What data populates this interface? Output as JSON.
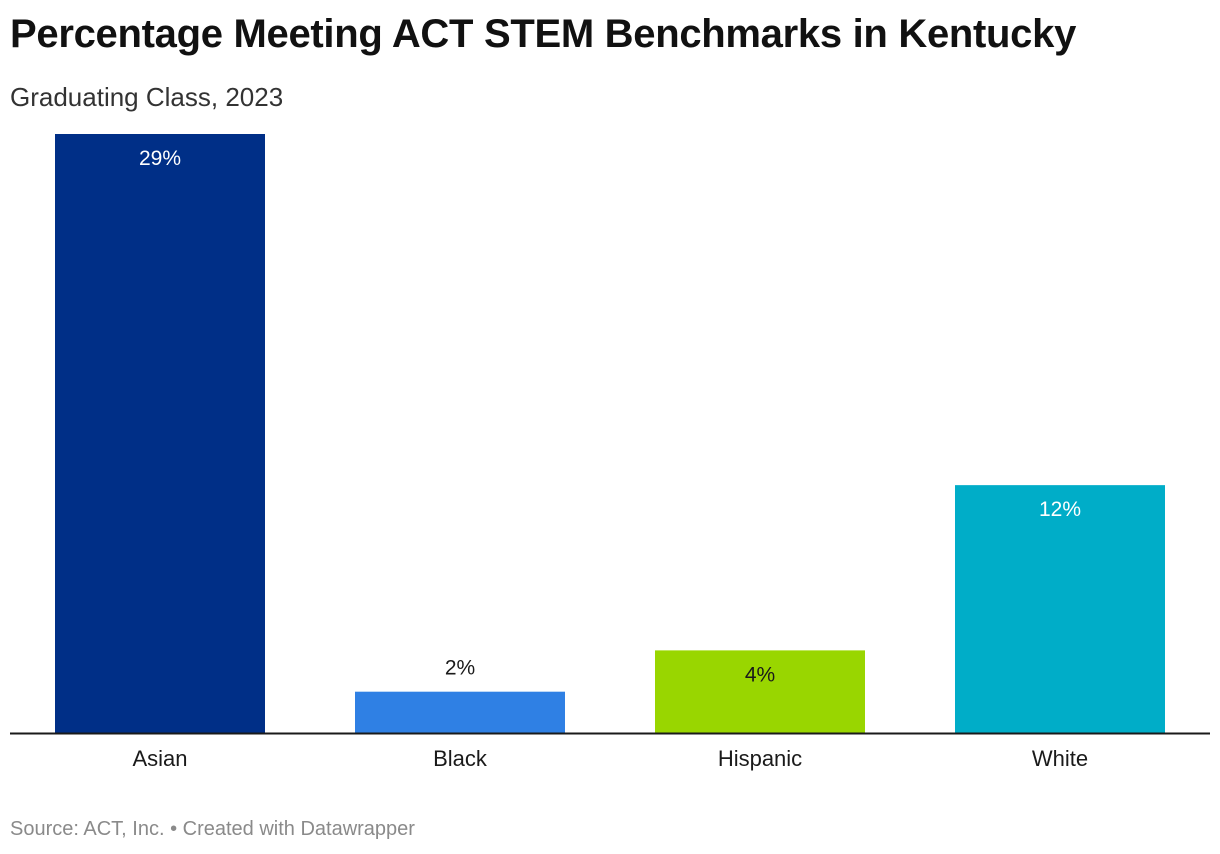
{
  "header": {
    "title": "Percentage Meeting ACT STEM Benchmarks in Kentucky",
    "subtitle": "Graduating Class, 2023"
  },
  "footer": {
    "source": "Source: ACT, Inc. • Created with Datawrapper"
  },
  "chart_data": {
    "type": "bar",
    "title": "Percentage Meeting ACT STEM Benchmarks in Kentucky",
    "subtitle": "Graduating Class, 2023",
    "categories": [
      "Asian",
      "Black",
      "Hispanic",
      "White"
    ],
    "values": [
      29,
      2,
      4,
      12
    ],
    "labels": [
      "29%",
      "2%",
      "4%",
      "12%"
    ],
    "colors": [
      "#002f87",
      "#2f80e4",
      "#99d600",
      "#00adc8"
    ],
    "label_colors": [
      "#ffffff",
      "#1a1a1a",
      "#1a1a1a",
      "#ffffff"
    ],
    "ylim": [
      0,
      29
    ],
    "grid": false,
    "legend": "none"
  }
}
